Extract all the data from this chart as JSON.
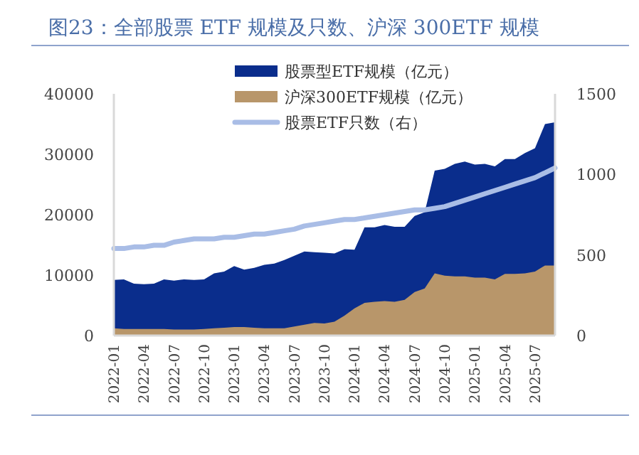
{
  "chart_data": {
    "type": "area",
    "title": "图23：全部股票 ETF 规模及只数、沪深 300ETF 规模",
    "x": [
      "2022-01",
      "2022-02",
      "2022-03",
      "2022-04",
      "2022-05",
      "2022-06",
      "2022-07",
      "2022-08",
      "2022-09",
      "2022-10",
      "2022-11",
      "2022-12",
      "2023-01",
      "2023-02",
      "2023-03",
      "2023-04",
      "2023-05",
      "2023-06",
      "2023-07",
      "2023-08",
      "2023-09",
      "2023-10",
      "2023-11",
      "2023-12",
      "2024-01",
      "2024-02",
      "2024-03",
      "2024-04",
      "2024-05",
      "2024-06",
      "2024-07",
      "2024-08",
      "2024-09",
      "2024-10",
      "2024-11",
      "2024-12",
      "2025-01",
      "2025-02",
      "2025-03",
      "2025-04",
      "2025-05",
      "2025-06",
      "2025-07",
      "2025-08",
      "2025-09"
    ],
    "series": [
      {
        "name": "股票型ETF规模（亿元）",
        "type": "area",
        "color": "#0a2d8c",
        "values": [
          9200,
          9300,
          8600,
          8500,
          8600,
          9300,
          9100,
          9300,
          9200,
          9300,
          10300,
          10600,
          11500,
          10900,
          11200,
          11700,
          11900,
          12500,
          13200,
          13900,
          13800,
          13700,
          13600,
          14300,
          14200,
          17900,
          17900,
          18300,
          18000,
          18000,
          19800,
          20400,
          27300,
          27600,
          28400,
          28800,
          28300,
          28400,
          28000,
          29200,
          29200,
          30200,
          31000,
          35000,
          35300
        ]
      },
      {
        "name": "沪深300ETF规模（亿元）",
        "type": "area",
        "color": "#b8966a",
        "values": [
          1200,
          1100,
          1100,
          1100,
          1100,
          1100,
          1000,
          1000,
          1000,
          1100,
          1200,
          1300,
          1400,
          1400,
          1300,
          1200,
          1200,
          1200,
          1500,
          1800,
          2100,
          2000,
          2300,
          3300,
          4500,
          5400,
          5600,
          5700,
          5600,
          5900,
          7200,
          7800,
          10300,
          9900,
          9800,
          9800,
          9600,
          9600,
          9300,
          10200,
          10200,
          10300,
          10600,
          11600,
          11600
        ]
      },
      {
        "name": "股票ETF只数（右）",
        "type": "line",
        "axis": "y2",
        "color": "#a9bde6",
        "values": [
          540,
          540,
          550,
          550,
          560,
          560,
          580,
          590,
          600,
          600,
          600,
          610,
          610,
          620,
          630,
          630,
          640,
          650,
          660,
          680,
          690,
          700,
          710,
          720,
          720,
          730,
          740,
          750,
          760,
          770,
          780,
          780,
          790,
          800,
          820,
          840,
          860,
          880,
          900,
          920,
          940,
          960,
          980,
          1010,
          1040
        ]
      }
    ],
    "xlim": [
      "2022-01",
      "2025-09"
    ],
    "xticks": [
      "2022-01",
      "2022-04",
      "2022-07",
      "2022-10",
      "2023-01",
      "2023-04",
      "2023-07",
      "2023-10",
      "2024-01",
      "2024-04",
      "2024-07",
      "2024-10",
      "2025-01",
      "2025-04",
      "2025-07"
    ],
    "ylim": [
      0,
      40000
    ],
    "yticks": [
      0,
      10000,
      20000,
      30000,
      40000
    ],
    "y2lim": [
      0,
      1500
    ],
    "y2ticks": [
      0,
      500,
      1000,
      1500
    ],
    "legend": "top",
    "grid": false
  }
}
